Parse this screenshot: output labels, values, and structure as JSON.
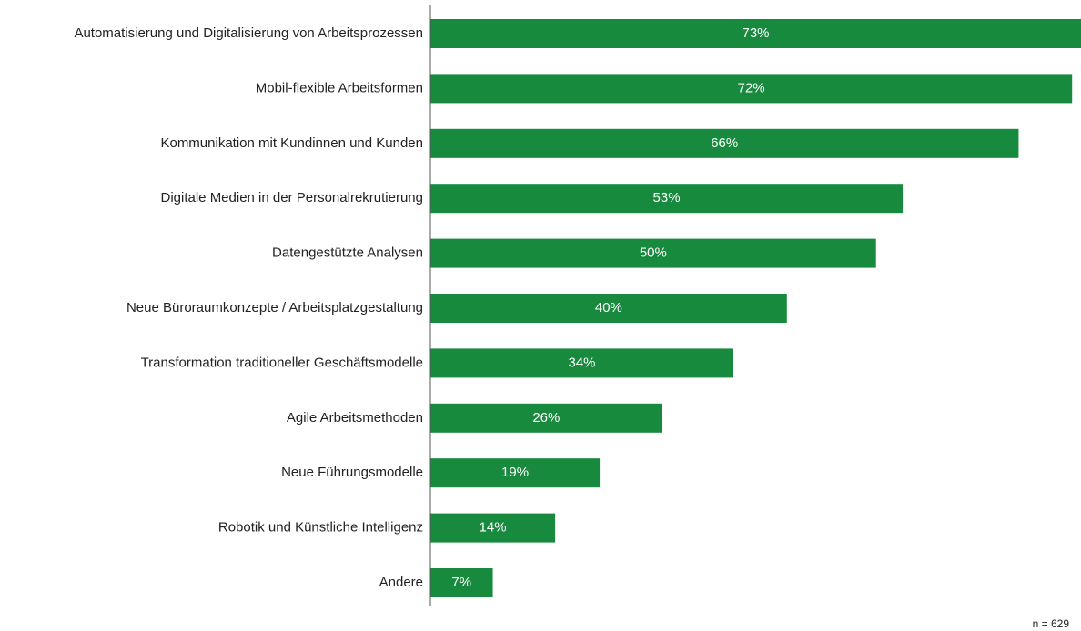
{
  "chart_data": {
    "type": "barh",
    "categories": [
      "Automatisierung und Digitalisierung von Arbeitsprozessen",
      "Mobil-flexible Arbeitsformen",
      "Kommunikation mit Kundinnen und Kunden",
      "Digitale Medien in der Personalrekrutierung",
      "Datengestützte Analysen",
      "Neue Büroraumkonzepte / Arbeitsplatzgestaltung",
      "Transformation traditioneller Geschäftsmodelle",
      "Agile Arbeitsmethoden",
      "Neue Führungsmodelle",
      "Robotik und Künstliche Intelligenz",
      "Andere"
    ],
    "values": [
      73,
      72,
      66,
      53,
      50,
      40,
      34,
      26,
      19,
      14,
      7
    ],
    "value_labels": [
      "73%",
      "72%",
      "66%",
      "53%",
      "50%",
      "40%",
      "34%",
      "26%",
      "19%",
      "14%",
      "7%"
    ],
    "color": "#178a3e",
    "xlim": [
      0,
      73
    ],
    "annotation": "n = 629"
  }
}
